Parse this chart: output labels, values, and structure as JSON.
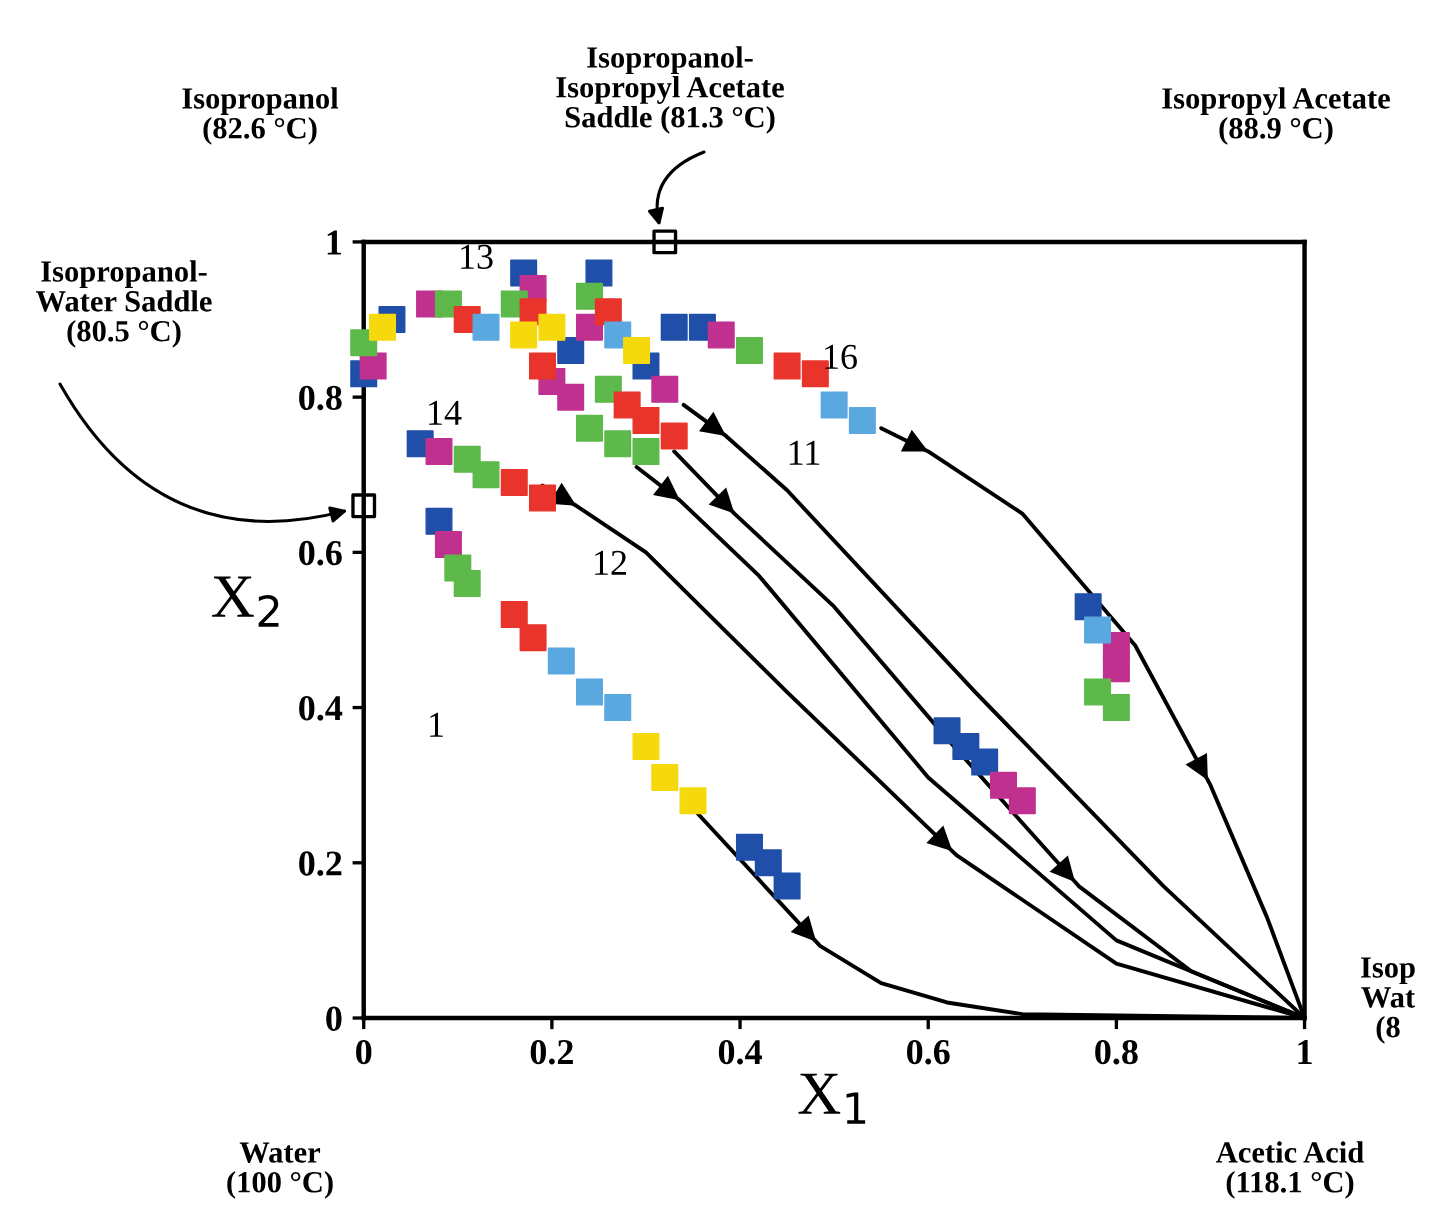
{
  "chart_data": {
    "type": "line",
    "xlabel": "X$_{1}$",
    "ylabel": "X$_{2}$",
    "xlim": [
      0,
      1
    ],
    "ylim": [
      0,
      1
    ],
    "xticks": [
      0,
      0.2,
      0.4,
      0.6,
      0.8,
      1
    ],
    "yticks": [
      0,
      0.2,
      0.4,
      0.6,
      0.8,
      1
    ],
    "grid": false,
    "legend": false,
    "series": [
      {
        "color": "#000000",
        "x": [
          0.35,
          0.485,
          0.55,
          0.62,
          0.7,
          1
        ],
        "values": [
          0.27,
          0.093,
          0.045,
          0.02,
          0.005,
          0
        ]
      },
      {
        "color": "#000000",
        "x": [
          0.19,
          0.226,
          0.3,
          0.45,
          0.63,
          0.8,
          1
        ],
        "values": [
          0.686,
          0.66,
          0.6,
          0.42,
          0.21,
          0.07,
          0
        ]
      },
      {
        "color": "#000000",
        "x": [
          0.29,
          0.336,
          0.42,
          0.6,
          0.8,
          1
        ],
        "values": [
          0.71,
          0.667,
          0.57,
          0.31,
          0.1,
          0
        ]
      },
      {
        "color": "#000000",
        "x": [
          0.33,
          0.394,
          0.5,
          0.62,
          0.76,
          0.88,
          1
        ],
        "values": [
          0.73,
          0.65,
          0.53,
          0.36,
          0.17,
          0.06,
          0
        ]
      },
      {
        "color": "#000000",
        "x": [
          0.34,
          0.385,
          0.45,
          0.65,
          0.85,
          1
        ],
        "values": [
          0.79,
          0.75,
          0.68,
          0.42,
          0.17,
          0
        ]
      },
      {
        "color": "#000000",
        "x": [
          0.55,
          0.6,
          0.7,
          0.82,
          0.9,
          0.96,
          1
        ],
        "values": [
          0.76,
          0.73,
          0.65,
          0.48,
          0.3,
          0.13,
          0
        ]
      },
      {
        "type": "scatter",
        "marker": "square",
        "color": "#1f4fa8",
        "x": [
          0.08,
          0.06,
          0.0,
          0.03,
          0.17,
          0.25,
          0.33,
          0.36,
          0.3,
          0.22,
          0.41,
          0.43,
          0.45,
          0.62,
          0.64,
          0.66,
          0.77
        ],
        "values": [
          0.64,
          0.74,
          0.83,
          0.9,
          0.96,
          0.96,
          0.89,
          0.89,
          0.84,
          0.86,
          0.22,
          0.2,
          0.17,
          0.37,
          0.35,
          0.33,
          0.53
        ]
      },
      {
        "type": "scatter",
        "marker": "square",
        "color": "#c0308f",
        "x": [
          0.09,
          0.08,
          0.01,
          0.07,
          0.18,
          0.24,
          0.38,
          0.2,
          0.22,
          0.32,
          0.68,
          0.7,
          0.8,
          0.8
        ],
        "values": [
          0.61,
          0.73,
          0.84,
          0.92,
          0.94,
          0.89,
          0.88,
          0.82,
          0.8,
          0.81,
          0.3,
          0.28,
          0.48,
          0.45
        ]
      },
      {
        "type": "scatter",
        "marker": "square",
        "color": "#5cb94a",
        "x": [
          0.1,
          0.11,
          0.11,
          0.13,
          0.0,
          0.09,
          0.16,
          0.24,
          0.41,
          0.26,
          0.24,
          0.27,
          0.3,
          0.78,
          0.8
        ],
        "values": [
          0.58,
          0.56,
          0.72,
          0.7,
          0.87,
          0.92,
          0.92,
          0.93,
          0.86,
          0.81,
          0.76,
          0.74,
          0.73,
          0.42,
          0.4
        ]
      },
      {
        "type": "scatter",
        "marker": "square",
        "color": "#e8342b",
        "x": [
          0.16,
          0.18,
          0.16,
          0.19,
          0.11,
          0.19,
          0.28,
          0.3,
          0.33,
          0.45,
          0.48,
          0.18,
          0.26
        ],
        "values": [
          0.52,
          0.49,
          0.69,
          0.67,
          0.9,
          0.84,
          0.79,
          0.77,
          0.75,
          0.84,
          0.83,
          0.91,
          0.91
        ]
      },
      {
        "type": "scatter",
        "marker": "square",
        "color": "#5aa8e0",
        "x": [
          0.21,
          0.24,
          0.27,
          0.13,
          0.27,
          0.5,
          0.53,
          0.78
        ],
        "values": [
          0.46,
          0.42,
          0.4,
          0.89,
          0.88,
          0.79,
          0.77,
          0.5
        ]
      },
      {
        "type": "scatter",
        "marker": "square",
        "color": "#f5d90c",
        "x": [
          0.3,
          0.32,
          0.35,
          0.02,
          0.17,
          0.2,
          0.29
        ],
        "values": [
          0.35,
          0.31,
          0.28,
          0.89,
          0.88,
          0.89,
          0.86
        ]
      },
      {
        "type": "scatter",
        "marker": "square",
        "color": "#000000",
        "x": [
          0,
          0.32
        ],
        "values": [
          0.66,
          1
        ]
      }
    ],
    "annotations": [
      "Isopropanol\n(82.6 °C)",
      "Isopropanol-\nIsopropyl Acetate\nSaddle (81.3 °C)",
      "Isopropyl Acetate\n(88.9 °C)",
      "Isopropanol-\nWater Saddle\n(80.5 °C)",
      "Water\n(100 °C)",
      "Acetic Acid\n(118.1 °C)",
      "1",
      "12",
      "11",
      "16",
      "13",
      "14",
      "Isop\nWat\n(8"
    ]
  }
}
